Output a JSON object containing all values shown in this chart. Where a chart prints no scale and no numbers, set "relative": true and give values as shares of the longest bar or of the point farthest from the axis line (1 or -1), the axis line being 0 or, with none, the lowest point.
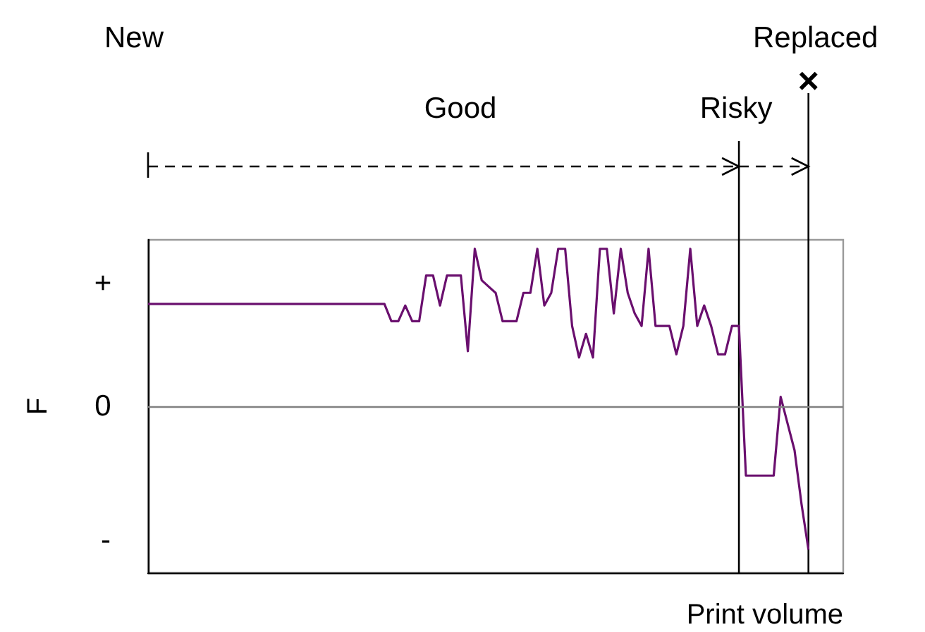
{
  "chart_data": {
    "type": "line",
    "xlabel": "Print volume",
    "ylabel": "F",
    "annotations": [
      "New",
      "Good",
      "Risky",
      "Replaced",
      "×",
      "+",
      "0",
      "-"
    ],
    "categories": [
      null,
      null,
      null,
      null,
      null,
      null,
      null,
      null,
      null,
      null,
      null,
      null,
      null,
      null,
      null,
      null,
      null,
      null,
      null,
      null,
      null,
      null,
      null,
      null,
      null,
      null,
      null,
      null,
      null,
      null,
      null,
      null,
      null,
      null,
      null,
      null,
      null,
      null,
      null,
      null,
      null,
      null,
      null,
      null,
      null,
      null,
      null,
      null,
      null,
      null,
      null,
      null,
      null,
      null,
      null,
      null,
      null,
      null,
      null,
      null,
      null,
      null,
      null,
      null,
      null,
      null,
      null,
      null,
      null,
      null,
      null,
      null,
      null,
      null,
      null,
      null,
      null,
      null,
      null,
      null,
      null,
      null,
      null,
      null,
      null,
      null,
      null,
      null,
      null,
      null,
      null,
      null,
      null,
      null,
      null,
      null,
      null,
      null,
      null,
      null,
      null
    ],
    "values": [
      0.65,
      0.65,
      0.65,
      0.65,
      0.65,
      0.65,
      0.65,
      0.65,
      0.65,
      0.65,
      0.65,
      0.65,
      0.65,
      0.65,
      0.65,
      0.65,
      0.65,
      0.65,
      0.65,
      0.65,
      0.65,
      0.65,
      0.65,
      0.65,
      0.65,
      0.65,
      0.65,
      0.65,
      0.65,
      0.65,
      0.65,
      0.65,
      0.65,
      0.65,
      0.65,
      0.54,
      0.54,
      0.64,
      0.54,
      0.54,
      0.83,
      0.83,
      0.64,
      0.83,
      0.83,
      0.83,
      0.35,
      1,
      0.8,
      0.76,
      0.72,
      0.54,
      0.54,
      0.54,
      0.72,
      0.72,
      1,
      0.64,
      0.72,
      1,
      1,
      0.51,
      0.31,
      0.46,
      0.31,
      1,
      1,
      0.59,
      1,
      0.72,
      0.59,
      0.51,
      1,
      0.51,
      0.51,
      0.51,
      0.33,
      0.51,
      1,
      0.51,
      0.64,
      0.51,
      0.33,
      0.33,
      0.51,
      0.51,
      -0.44,
      -0.44,
      -0.44,
      -0.44,
      -0.44,
      0.06,
      -0.11,
      -0.28,
      -0.62,
      -0.91,
      null,
      null,
      null,
      null,
      null
    ],
    "color": "#6a0f6e",
    "relative": true,
    "ref_lines": [
      {
        "axis": "y",
        "value": 0,
        "color": "#808080"
      }
    ]
  }
}
